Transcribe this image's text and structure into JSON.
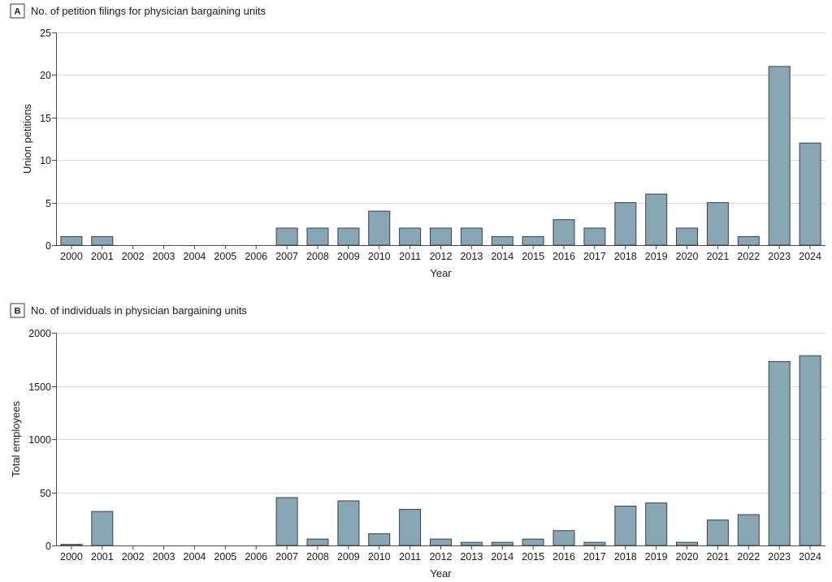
{
  "chart_data": [
    {
      "type": "bar",
      "panel_label": "A",
      "title": "No. of petition filings for physician bargaining units",
      "xlabel": "Year",
      "ylabel": "Union petitions",
      "ylim": [
        0,
        25
      ],
      "yticks": [
        "0",
        "5",
        "10",
        "15",
        "20",
        "25"
      ],
      "grid": true,
      "categories": [
        "2000",
        "2001",
        "2002",
        "2003",
        "2004",
        "2005",
        "2006",
        "2007",
        "2008",
        "2009",
        "2010",
        "2011",
        "2012",
        "2013",
        "2014",
        "2015",
        "2016",
        "2017",
        "2018",
        "2019",
        "2020",
        "2021",
        "2022",
        "2023",
        "2024"
      ],
      "values": [
        1,
        1,
        0,
        0,
        0,
        0,
        0,
        2,
        2,
        2,
        4,
        2,
        2,
        2,
        1,
        1,
        3,
        2,
        5,
        6,
        2,
        5,
        1,
        21,
        12
      ]
    },
    {
      "type": "bar",
      "panel_label": "B",
      "title": "No. of individuals in physician bargaining units",
      "xlabel": "Year",
      "ylabel": "Total employees",
      "ylim": [
        0,
        2000
      ],
      "yticks": [
        "0",
        "50",
        "1000",
        "1500",
        "2000"
      ],
      "axis_break": "tick labeled 50 sits at the position where 500 would fall; values below it are drawn on an expanded 0-50 scale",
      "grid": true,
      "categories": [
        "2000",
        "2001",
        "2002",
        "2003",
        "2004",
        "2005",
        "2006",
        "2007",
        "2008",
        "2009",
        "2010",
        "2011",
        "2012",
        "2013",
        "2014",
        "2015",
        "2016",
        "2017",
        "2018",
        "2019",
        "2020",
        "2021",
        "2022",
        "2023",
        "2024"
      ],
      "values": [
        1,
        32,
        0,
        0,
        0,
        0,
        0,
        45,
        6,
        42,
        11,
        34,
        6,
        3,
        3,
        6,
        14,
        3,
        37,
        40,
        3,
        24,
        29,
        1730,
        1785
      ]
    }
  ]
}
